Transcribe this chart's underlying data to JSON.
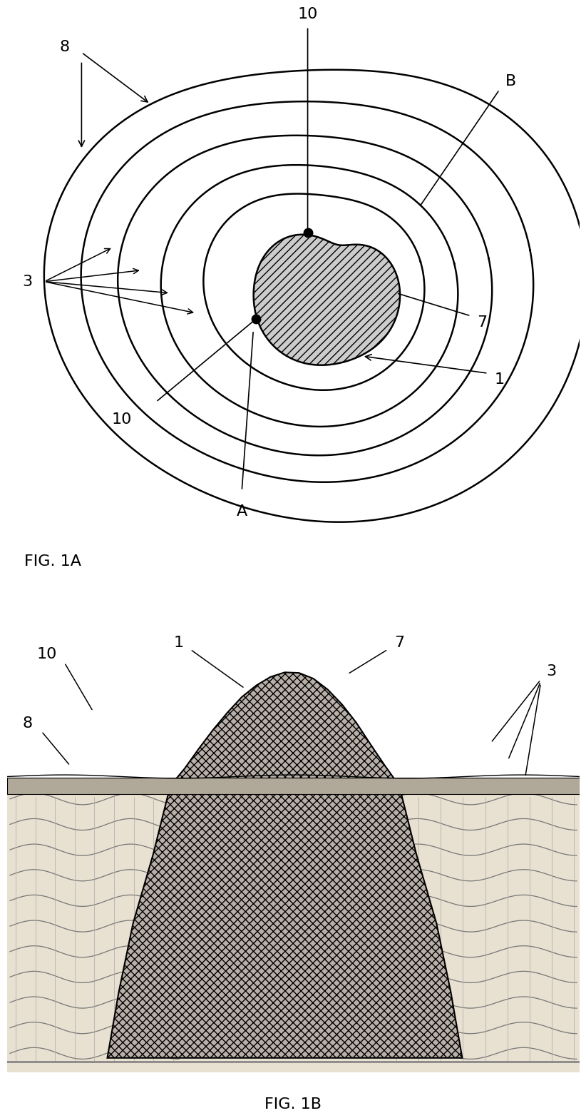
{
  "fig_width": 12.4,
  "fig_height": 16.06,
  "bg_color": "#ffffff",
  "line_color": "#000000",
  "fig1a_label": "FIG. 1A",
  "fig1b_label": "FIG. 1B",
  "contour_color": "#000000",
  "inner_fill": "#cccccc",
  "cross_fill_rock": "#b8b0a8",
  "cross_fill_layer": "#e0d8c8",
  "dot_color": "#000000",
  "label_fontsize": 16,
  "lw_contour": 1.8
}
